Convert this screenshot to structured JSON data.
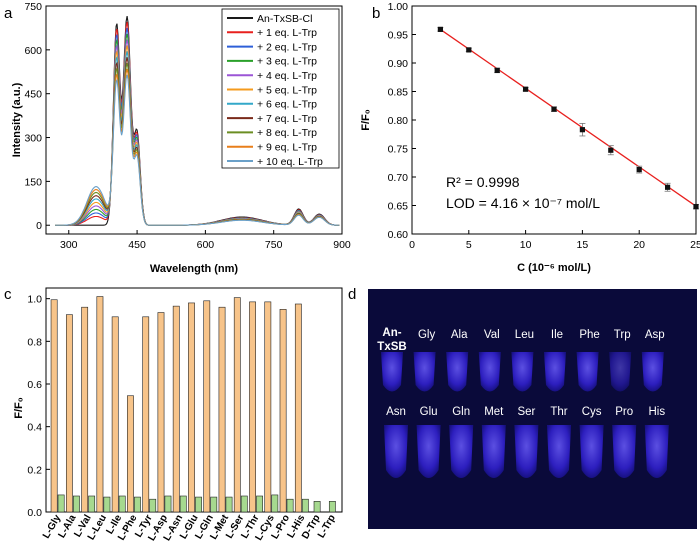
{
  "colors": {
    "fit_line": "#e8201e",
    "bar_blank": "#f7c48a",
    "bar_trp": "#a6d98f",
    "photo_bg": "#0a0a3a",
    "tube_glow": "#4d3cff"
  },
  "panels": {
    "a": {
      "letter": "a",
      "xlabel": "Wavelength (nm)",
      "ylabel": "Intensity (a.u.)",
      "xlim": [
        250,
        900
      ],
      "ylim": [
        -30,
        750
      ],
      "xticks": [
        300,
        450,
        600,
        750,
        900
      ],
      "yticks": [
        0,
        150,
        300,
        450,
        600,
        750
      ],
      "legend": [
        "An-TxSB-Cl",
        "+ 1 eq. L-Trp",
        "+ 2 eq. L-Trp",
        "+ 3 eq. L-Trp",
        "+ 4 eq. L-Trp",
        "+ 5 eq. L-Trp",
        "+ 6 eq. L-Trp",
        "+ 7 eq. L-Trp",
        "+ 8 eq. L-Trp",
        "+ 9 eq. L-Trp",
        "+ 10 eq. L-Trp"
      ],
      "series_colors": [
        "#1a1a1a",
        "#e8201e",
        "#2e5fd8",
        "#2aa02a",
        "#9b55d6",
        "#f59b1d",
        "#33a8c9",
        "#7a2a1a",
        "#6b8e23",
        "#e87f1a",
        "#6aa0c8"
      ]
    },
    "b": {
      "letter": "b",
      "xlabel": "C (10⁻⁶ mol/L)",
      "ylabel": "F/F₀",
      "xlim": [
        0,
        25
      ],
      "ylim": [
        0.6,
        1.0
      ],
      "xticks": [
        0,
        5,
        10,
        15,
        20,
        25
      ],
      "yticks": [
        0.6,
        0.65,
        0.7,
        0.75,
        0.8,
        0.85,
        0.9,
        0.95,
        1.0
      ],
      "r2": "R² = 0.9998",
      "lod": "LOD = 4.16 × 10⁻⁷ mol/L"
    },
    "c": {
      "letter": "c",
      "ylabel": "F/F₀",
      "ylim": [
        0,
        1.05
      ],
      "yticks": [
        0.0,
        0.2,
        0.4,
        0.6,
        0.8,
        1.0
      ]
    },
    "d": {
      "letter": "d",
      "top_labels": [
        "An-TxSB",
        "Gly",
        "Ala",
        "Val",
        "Leu",
        "Ile",
        "Phe",
        "Trp",
        "Asp"
      ],
      "bottom_labels": [
        "Asn",
        "Glu",
        "Gln",
        "Met",
        "Ser",
        "Thr",
        "Cys",
        "Pro",
        "His"
      ]
    }
  },
  "chart_data": [
    {
      "type": "line",
      "title": "",
      "xlabel": "Wavelength (nm)",
      "ylabel": "Intensity (a.u.)",
      "xlim": [
        250,
        900
      ],
      "ylim": [
        -30,
        750
      ],
      "peak_wavelengths": [
        360,
        405,
        428,
        450,
        680,
        805,
        850
      ],
      "series": [
        {
          "name": "An-TxSB-Cl",
          "peaks": {
            "360": 0,
            "405": 680,
            "428": 710,
            "450": 310,
            "680": 28,
            "805": 55,
            "850": 38
          }
        },
        {
          "name": "+ 1 eq. L-Trp",
          "peaks": {
            "360": 30,
            "405": 660,
            "428": 690,
            "450": 300,
            "680": 26,
            "805": 52,
            "850": 36
          }
        },
        {
          "name": "+ 2 eq. L-Trp",
          "peaks": {
            "360": 42,
            "405": 640,
            "428": 670,
            "450": 292,
            "680": 25,
            "805": 50,
            "850": 35
          }
        },
        {
          "name": "+ 3 eq. L-Trp",
          "peaks": {
            "360": 54,
            "405": 620,
            "428": 650,
            "450": 284,
            "680": 24,
            "805": 48,
            "850": 34
          }
        },
        {
          "name": "+ 4 eq. L-Trp",
          "peaks": {
            "360": 66,
            "405": 600,
            "428": 630,
            "450": 276,
            "680": 23,
            "805": 46,
            "850": 33
          }
        },
        {
          "name": "+ 5 eq. L-Trp",
          "peaks": {
            "360": 78,
            "405": 580,
            "428": 610,
            "450": 268,
            "680": 22,
            "805": 44,
            "850": 32
          }
        },
        {
          "name": "+ 6 eq. L-Trp",
          "peaks": {
            "360": 90,
            "405": 560,
            "428": 590,
            "450": 260,
            "680": 21,
            "805": 42,
            "850": 31
          }
        },
        {
          "name": "+ 7 eq. L-Trp",
          "peaks": {
            "360": 101,
            "405": 540,
            "428": 570,
            "450": 252,
            "680": 20,
            "805": 40,
            "850": 30
          }
        },
        {
          "name": "+ 8 eq. L-Trp",
          "peaks": {
            "360": 112,
            "405": 520,
            "428": 550,
            "450": 244,
            "680": 19,
            "805": 38,
            "850": 29
          }
        },
        {
          "name": "+ 9 eq. L-Trp",
          "peaks": {
            "360": 122,
            "405": 500,
            "428": 530,
            "450": 236,
            "680": 18,
            "805": 36,
            "850": 28
          }
        },
        {
          "name": "+ 10 eq. L-Trp",
          "peaks": {
            "360": 132,
            "405": 480,
            "428": 510,
            "450": 228,
            "680": 17,
            "805": 34,
            "850": 27
          }
        }
      ]
    },
    {
      "type": "scatter",
      "title": "",
      "xlabel": "C (10⁻⁶ mol/L)",
      "ylabel": "F/F₀",
      "xlim": [
        0,
        25
      ],
      "ylim": [
        0.6,
        1.0
      ],
      "x": [
        2.5,
        5,
        7.5,
        10,
        12.5,
        15,
        17.5,
        20,
        22.5,
        25
      ],
      "y": [
        0.959,
        0.923,
        0.887,
        0.854,
        0.819,
        0.783,
        0.747,
        0.713,
        0.682,
        0.648
      ],
      "error": [
        0.003,
        0.003,
        0.004,
        0.003,
        0.004,
        0.011,
        0.008,
        0.006,
        0.007,
        0.004
      ],
      "fit": {
        "slope": -0.01378,
        "intercept": 0.9933
      },
      "annotations": [
        "R² = 0.9998",
        "LOD = 4.16 × 10⁻⁷ mol/L"
      ]
    },
    {
      "type": "bar",
      "title": "",
      "xlabel": "",
      "ylabel": "F/F₀",
      "ylim": [
        0,
        1.05
      ],
      "categories": [
        "L-Gly",
        "L-Ala",
        "L-Val",
        "L-Leu",
        "L-Ile",
        "L-Phe",
        "L-Tyr",
        "L-Asp",
        "L-Asn",
        "L-Glu",
        "L-Gln",
        "L-Met",
        "L-Ser",
        "L-Thr",
        "L-Cys",
        "L-Pro",
        "L-His",
        "D-Trp",
        "L-Trp"
      ],
      "series": [
        {
          "name": "analyte",
          "values": [
            0.995,
            0.925,
            0.96,
            1.01,
            0.915,
            0.545,
            0.915,
            0.935,
            0.965,
            0.98,
            0.99,
            0.96,
            1.005,
            0.985,
            0.985,
            0.95,
            0.975,
            null,
            null
          ]
        },
        {
          "name": "analyte + L-Trp",
          "values": [
            0.08,
            0.075,
            0.075,
            0.07,
            0.075,
            0.07,
            0.06,
            0.075,
            0.075,
            0.07,
            0.07,
            0.07,
            0.075,
            0.075,
            0.08,
            0.06,
            0.06,
            0.05,
            0.05
          ]
        }
      ]
    }
  ]
}
